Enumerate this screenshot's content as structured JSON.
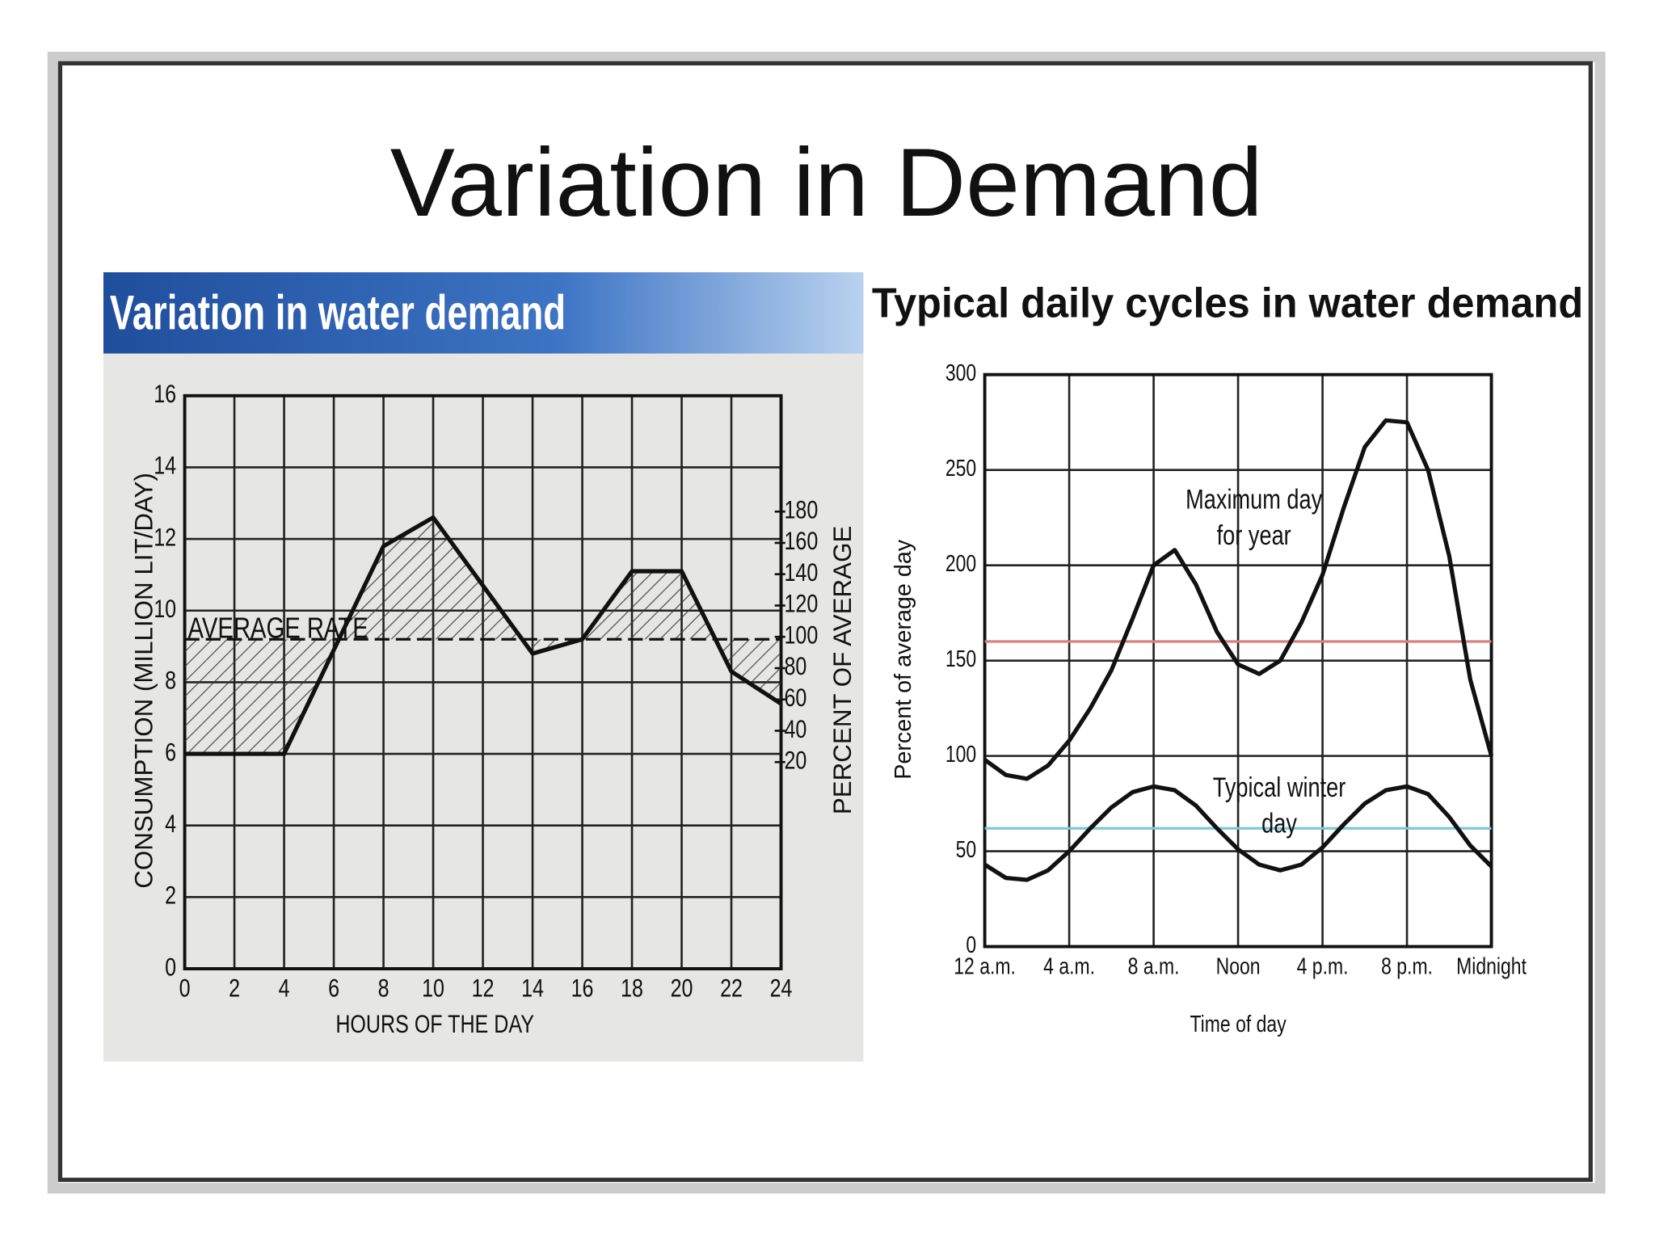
{
  "title": "Variation in Demand",
  "chart_data": [
    {
      "type": "line",
      "title": "Variation in water demand",
      "xlabel": "HOURS OF THE DAY",
      "ylabel": "CONSUMPTION (MILLION LIT/DAY)",
      "y2label": "PERCENT OF AVERAGE",
      "x": [
        0,
        4,
        8,
        10,
        14,
        16,
        18,
        20,
        22,
        24
      ],
      "series": [
        {
          "color": "#111111",
          "values": [
            6,
            6,
            11.8,
            12.6,
            8.8,
            9.2,
            11.1,
            11.1,
            8.3,
            7.4
          ]
        }
      ],
      "average": 9.2,
      "annotations": [
        "AVERAGE RATE"
      ],
      "xlim": [
        0,
        24
      ],
      "xticks": [
        0,
        2,
        4,
        6,
        8,
        10,
        12,
        14,
        16,
        18,
        20,
        22,
        24
      ],
      "ylim": [
        0,
        16
      ],
      "yticks": [
        0,
        2,
        4,
        6,
        8,
        10,
        12,
        14,
        16
      ],
      "y2lim": [
        -112,
        254
      ],
      "y2ticks": [
        20,
        40,
        60,
        80,
        100,
        120,
        140,
        160,
        180
      ],
      "grid": true
    },
    {
      "type": "line",
      "title": "Typical daily cycles in water demand",
      "xlabel": "Time of day",
      "ylabel": "Percent of average day",
      "x": [
        0,
        1,
        2,
        3,
        4,
        5,
        6,
        7,
        8,
        9,
        10,
        11,
        12,
        13,
        14,
        15,
        16,
        17,
        18,
        19,
        20,
        21,
        22,
        23,
        24
      ],
      "series": [
        {
          "color": "#111111",
          "values": [
            98,
            90,
            88,
            95,
            108,
            125,
            145,
            172,
            200,
            208,
            190,
            165,
            148,
            143,
            150,
            170,
            195,
            230,
            262,
            276,
            275,
            250,
            205,
            140,
            100
          ]
        },
        {
          "color": "#111111",
          "values": [
            43,
            36,
            35,
            40,
            50,
            62,
            73,
            81,
            84,
            82,
            74,
            62,
            51,
            43,
            40,
            43,
            52,
            64,
            75,
            82,
            84,
            80,
            68,
            53,
            42
          ]
        }
      ],
      "annotations": [
        [
          "Maximum day",
          "for year"
        ],
        [
          "Typical winter",
          "day"
        ]
      ],
      "reference_lines": [
        {
          "value": 160,
          "color": "#d9807a"
        },
        {
          "value": 62,
          "color": "#7ec8d8"
        }
      ],
      "xlim": [
        0,
        24
      ],
      "xticks": [
        {
          "value": 0,
          "label": "12 a.m."
        },
        {
          "value": 4,
          "label": "4 a.m."
        },
        {
          "value": 8,
          "label": "8 a.m."
        },
        {
          "value": 12,
          "label": "Noon"
        },
        {
          "value": 16,
          "label": "4 p.m."
        },
        {
          "value": 20,
          "label": "8 p.m."
        },
        {
          "value": 24,
          "label": "Midnight"
        }
      ],
      "ylim": [
        0,
        300
      ],
      "yticks": [
        0,
        50,
        100,
        150,
        200,
        250,
        300
      ],
      "grid": true
    }
  ]
}
